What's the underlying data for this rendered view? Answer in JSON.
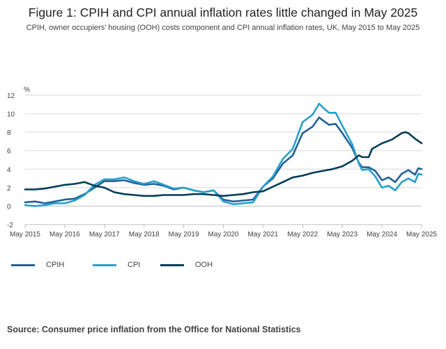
{
  "title": "Figure 1: CPIH and CPI annual inflation rates little changed in May 2025",
  "subtitle": "CPIH, owner occupiers’ housing (OOH) costs component and CPI annual inflation rates, UK, May 2015 to May 2025",
  "source": "Source: Consumer price inflation from the Office for National Statistics",
  "chart_data": {
    "type": "line",
    "ylabel": "%",
    "ylim": [
      -2,
      12
    ],
    "yticks": [
      "-2",
      "0",
      "2",
      "4",
      "6",
      "8",
      "10",
      "12"
    ],
    "xticks": [
      "May 2015",
      "May 2016",
      "May 2017",
      "May 2018",
      "May 2019",
      "May 2020",
      "May 2021",
      "May 2022",
      "May 2023",
      "May 2024",
      "May 2025"
    ],
    "x_start": "May 2015",
    "x_end": "May 2025",
    "grid": "horizontal",
    "legend_position": "bottom-left",
    "series": [
      {
        "name": "CPIH",
        "color": "#206095",
        "points": [
          [
            "2015-05",
            0.4
          ],
          [
            "2015-08",
            0.5
          ],
          [
            "2015-11",
            0.3
          ],
          [
            "2016-02",
            0.5
          ],
          [
            "2016-05",
            0.7
          ],
          [
            "2016-08",
            0.8
          ],
          [
            "2016-11",
            1.3
          ],
          [
            "2017-02",
            2.0
          ],
          [
            "2017-05",
            2.7
          ],
          [
            "2017-08",
            2.7
          ],
          [
            "2017-11",
            2.8
          ],
          [
            "2018-02",
            2.5
          ],
          [
            "2018-05",
            2.3
          ],
          [
            "2018-08",
            2.4
          ],
          [
            "2018-11",
            2.2
          ],
          [
            "2019-02",
            1.8
          ],
          [
            "2019-05",
            2.0
          ],
          [
            "2019-08",
            1.7
          ],
          [
            "2019-11",
            1.5
          ],
          [
            "2020-02",
            1.7
          ],
          [
            "2020-05",
            0.7
          ],
          [
            "2020-08",
            0.5
          ],
          [
            "2020-11",
            0.6
          ],
          [
            "2021-02",
            0.7
          ],
          [
            "2021-05",
            2.1
          ],
          [
            "2021-08",
            3.0
          ],
          [
            "2021-11",
            4.6
          ],
          [
            "2022-02",
            5.5
          ],
          [
            "2022-05",
            7.9
          ],
          [
            "2022-08",
            8.6
          ],
          [
            "2022-10",
            9.6
          ],
          [
            "2022-11",
            9.3
          ],
          [
            "2023-01",
            8.8
          ],
          [
            "2023-03",
            8.9
          ],
          [
            "2023-05",
            7.9
          ],
          [
            "2023-08",
            6.3
          ],
          [
            "2023-10",
            4.7
          ],
          [
            "2023-11",
            4.2
          ],
          [
            "2024-01",
            4.2
          ],
          [
            "2024-03",
            3.8
          ],
          [
            "2024-05",
            2.8
          ],
          [
            "2024-07",
            3.1
          ],
          [
            "2024-09",
            2.6
          ],
          [
            "2024-11",
            3.5
          ],
          [
            "2025-01",
            3.9
          ],
          [
            "2025-03",
            3.4
          ],
          [
            "2025-04",
            4.1
          ],
          [
            "2025-05",
            4.0
          ]
        ]
      },
      {
        "name": "CPI",
        "color": "#27a0cc",
        "points": [
          [
            "2015-05",
            0.1
          ],
          [
            "2015-08",
            0.0
          ],
          [
            "2015-11",
            0.1
          ],
          [
            "2016-02",
            0.3
          ],
          [
            "2016-05",
            0.3
          ],
          [
            "2016-08",
            0.6
          ],
          [
            "2016-11",
            1.2
          ],
          [
            "2017-02",
            2.3
          ],
          [
            "2017-05",
            2.9
          ],
          [
            "2017-08",
            2.9
          ],
          [
            "2017-11",
            3.1
          ],
          [
            "2018-02",
            2.7
          ],
          [
            "2018-05",
            2.4
          ],
          [
            "2018-08",
            2.7
          ],
          [
            "2018-11",
            2.3
          ],
          [
            "2019-02",
            1.9
          ],
          [
            "2019-05",
            2.0
          ],
          [
            "2019-08",
            1.7
          ],
          [
            "2019-11",
            1.5
          ],
          [
            "2020-02",
            1.7
          ],
          [
            "2020-05",
            0.5
          ],
          [
            "2020-08",
            0.2
          ],
          [
            "2020-11",
            0.3
          ],
          [
            "2021-02",
            0.4
          ],
          [
            "2021-05",
            2.1
          ],
          [
            "2021-08",
            3.2
          ],
          [
            "2021-11",
            5.1
          ],
          [
            "2022-02",
            6.2
          ],
          [
            "2022-05",
            9.1
          ],
          [
            "2022-08",
            9.9
          ],
          [
            "2022-10",
            11.1
          ],
          [
            "2022-11",
            10.7
          ],
          [
            "2023-01",
            10.1
          ],
          [
            "2023-03",
            10.1
          ],
          [
            "2023-05",
            8.7
          ],
          [
            "2023-08",
            6.7
          ],
          [
            "2023-10",
            4.6
          ],
          [
            "2023-11",
            3.9
          ],
          [
            "2024-01",
            4.0
          ],
          [
            "2024-03",
            3.2
          ],
          [
            "2024-05",
            2.0
          ],
          [
            "2024-07",
            2.2
          ],
          [
            "2024-09",
            1.7
          ],
          [
            "2024-11",
            2.6
          ],
          [
            "2025-01",
            3.0
          ],
          [
            "2025-03",
            2.6
          ],
          [
            "2025-04",
            3.5
          ],
          [
            "2025-05",
            3.4
          ]
        ]
      },
      {
        "name": "OOH",
        "color": "#003c57",
        "points": [
          [
            "2015-05",
            1.8
          ],
          [
            "2015-08",
            1.8
          ],
          [
            "2015-11",
            1.9
          ],
          [
            "2016-02",
            2.1
          ],
          [
            "2016-05",
            2.3
          ],
          [
            "2016-08",
            2.4
          ],
          [
            "2016-11",
            2.6
          ],
          [
            "2017-02",
            2.2
          ],
          [
            "2017-05",
            2.0
          ],
          [
            "2017-08",
            1.5
          ],
          [
            "2017-11",
            1.3
          ],
          [
            "2018-02",
            1.2
          ],
          [
            "2018-05",
            1.1
          ],
          [
            "2018-08",
            1.1
          ],
          [
            "2018-11",
            1.2
          ],
          [
            "2019-02",
            1.2
          ],
          [
            "2019-05",
            1.2
          ],
          [
            "2019-08",
            1.3
          ],
          [
            "2019-11",
            1.3
          ],
          [
            "2020-02",
            1.2
          ],
          [
            "2020-05",
            1.1
          ],
          [
            "2020-08",
            1.2
          ],
          [
            "2020-11",
            1.3
          ],
          [
            "2021-02",
            1.5
          ],
          [
            "2021-05",
            1.6
          ],
          [
            "2021-08",
            2.1
          ],
          [
            "2021-11",
            2.6
          ],
          [
            "2022-02",
            3.1
          ],
          [
            "2022-05",
            3.3
          ],
          [
            "2022-08",
            3.6
          ],
          [
            "2022-11",
            3.8
          ],
          [
            "2023-02",
            4.0
          ],
          [
            "2023-05",
            4.3
          ],
          [
            "2023-08",
            4.9
          ],
          [
            "2023-10",
            5.5
          ],
          [
            "2023-11",
            5.3
          ],
          [
            "2024-01",
            5.3
          ],
          [
            "2024-02",
            6.2
          ],
          [
            "2024-05",
            6.8
          ],
          [
            "2024-08",
            7.2
          ],
          [
            "2024-11",
            7.9
          ],
          [
            "2024-12",
            8.0
          ],
          [
            "2025-01",
            7.9
          ],
          [
            "2025-03",
            7.3
          ],
          [
            "2025-05",
            6.8
          ]
        ]
      }
    ]
  }
}
